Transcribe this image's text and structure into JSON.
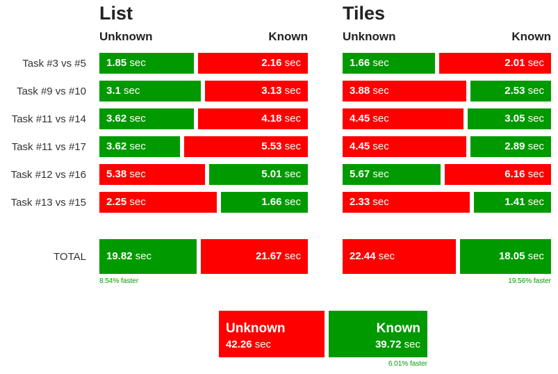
{
  "chart_data": [
    {
      "type": "bar",
      "title": "List",
      "series_labels": [
        "Unknown",
        "Known"
      ],
      "unit": "sec",
      "rows": [
        {
          "label": "Task #3 vs #5",
          "unknown": 1.85,
          "known": 2.16
        },
        {
          "label": "Task #9 vs #10",
          "unknown": 3.1,
          "known": 3.13
        },
        {
          "label": "Task #11 vs #14",
          "unknown": 3.62,
          "known": 4.18
        },
        {
          "label": "Task #11 vs #17",
          "unknown": 3.62,
          "known": 5.53
        },
        {
          "label": "Task #12 vs #16",
          "unknown": 5.38,
          "known": 5.01
        },
        {
          "label": "Task #13 vs #15",
          "unknown": 2.25,
          "known": 1.66
        }
      ],
      "total": {
        "label": "TOTAL",
        "unknown": 19.82,
        "known": 21.67
      },
      "note": "8.54% faster"
    },
    {
      "type": "bar",
      "title": "Tiles",
      "series_labels": [
        "Unknown",
        "Known"
      ],
      "unit": "sec",
      "rows": [
        {
          "label": "Task #3 vs #5",
          "unknown": 1.66,
          "known": 2.01
        },
        {
          "label": "Task #9 vs #10",
          "unknown": 3.88,
          "known": 2.53
        },
        {
          "label": "Task #11 vs #14",
          "unknown": 4.45,
          "known": 3.05
        },
        {
          "label": "Task #11 vs #17",
          "unknown": 4.45,
          "known": 2.89
        },
        {
          "label": "Task #12 vs #16",
          "unknown": 5.67,
          "known": 6.16
        },
        {
          "label": "Task #13 vs #15",
          "unknown": 2.33,
          "known": 1.41
        }
      ],
      "total": {
        "label": "TOTAL",
        "unknown": 22.44,
        "known": 18.05
      },
      "note": "19.56% faster"
    },
    {
      "type": "bar",
      "title": "",
      "unit": "sec",
      "grand_total": {
        "unknown_label": "Unknown",
        "known_label": "Known",
        "unknown": 42.26,
        "known": 39.72
      },
      "note": "6.01% faster"
    }
  ],
  "colors": {
    "faster": "#009a00",
    "slower": "#ff0000",
    "note": "#009a00"
  }
}
